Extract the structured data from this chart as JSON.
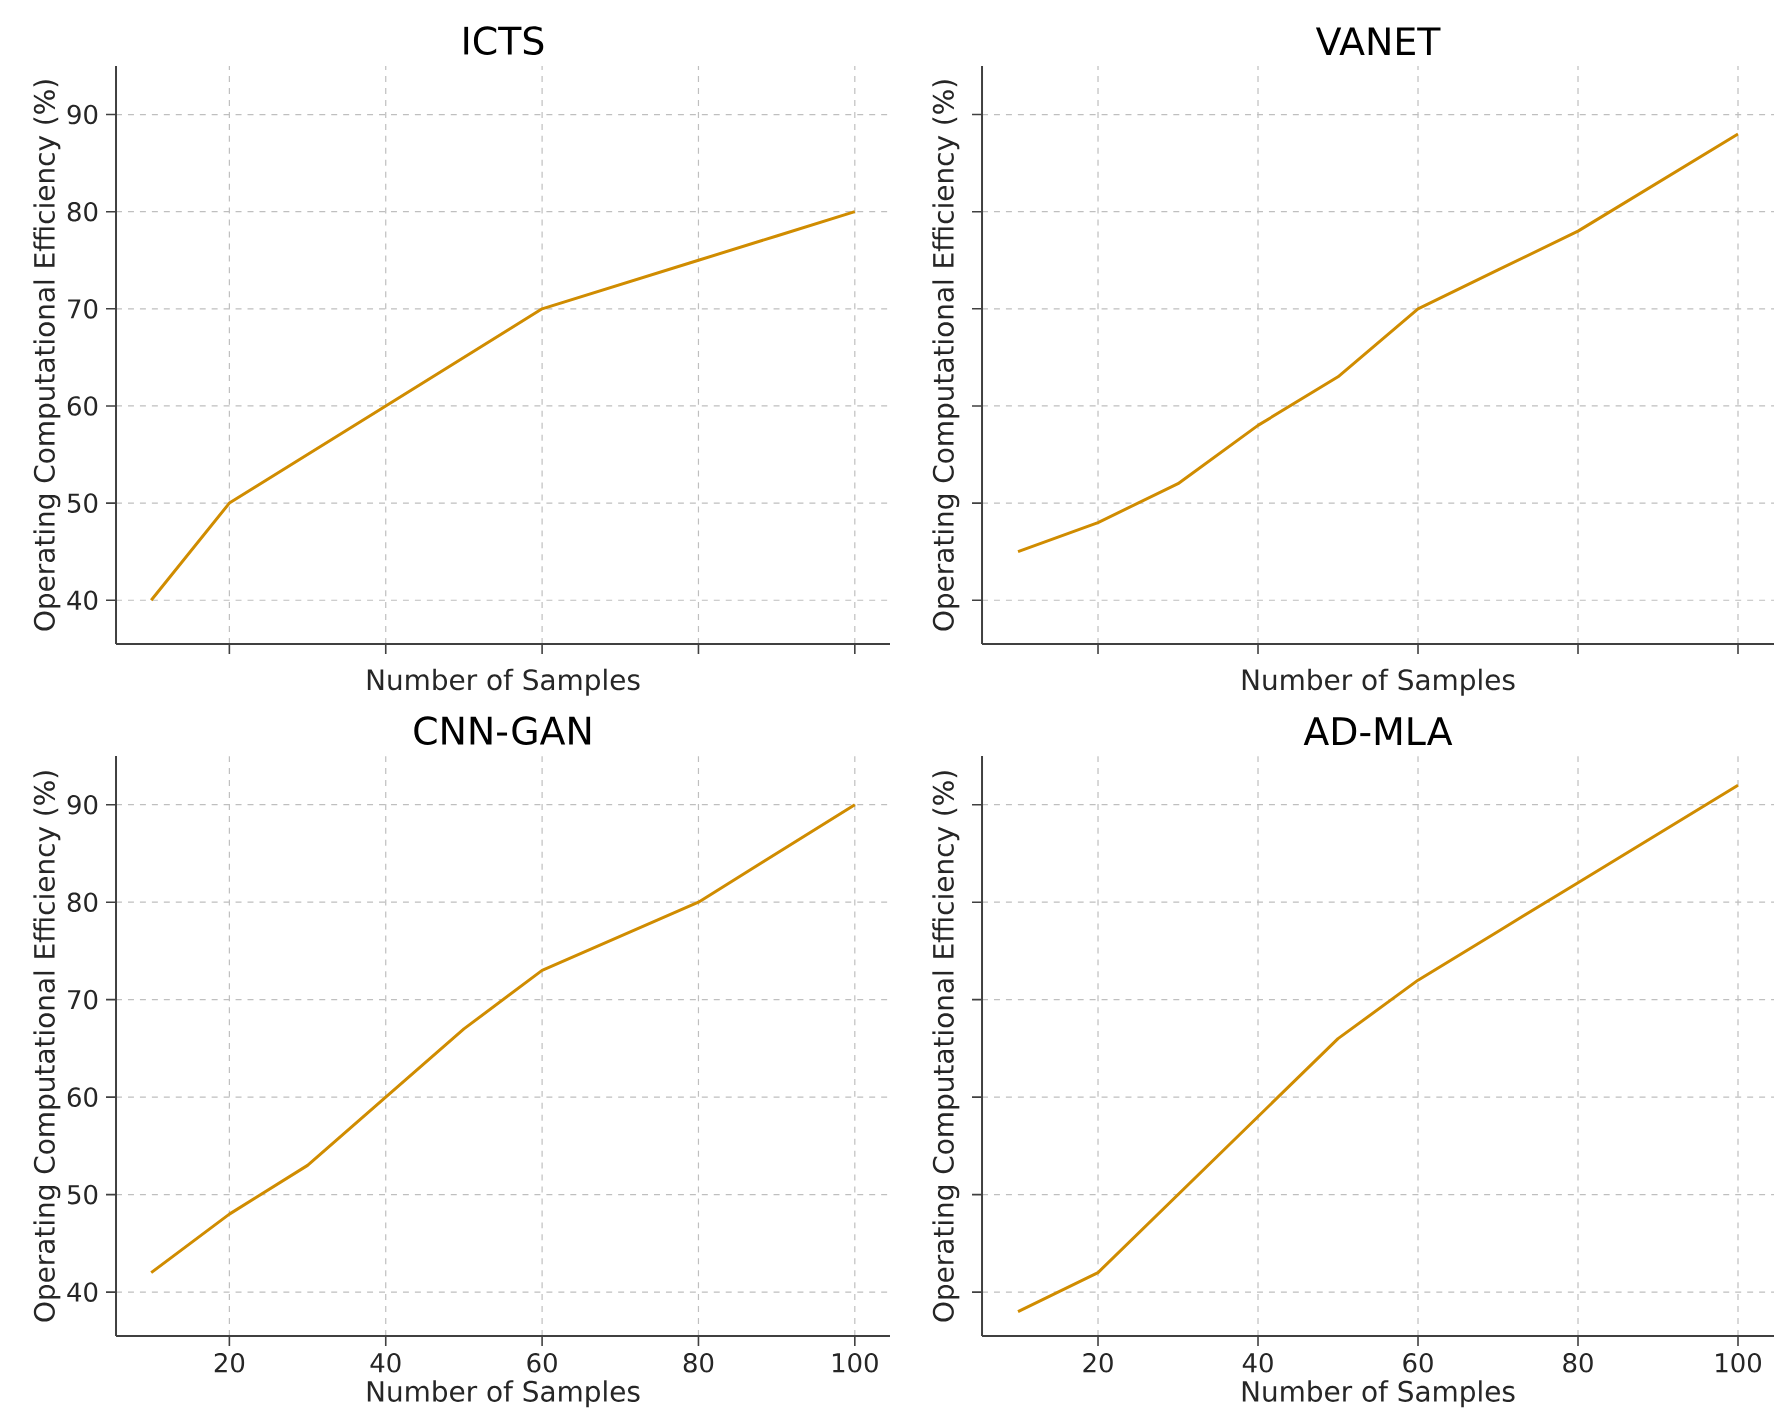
{
  "chart_data": [
    {
      "type": "line",
      "title": "ICTS",
      "xlabel": "Number of Samples",
      "ylabel": "Operating Computational Efficiency (%)",
      "x": [
        10,
        20,
        30,
        40,
        50,
        60,
        70,
        80,
        90,
        100
      ],
      "series": [
        {
          "color": "#d08c00",
          "values": [
            40,
            50,
            55,
            60,
            65,
            70,
            72.5,
            75,
            77.5,
            80
          ]
        }
      ],
      "xlim": [
        5.5,
        104.5
      ],
      "ylim": [
        35.5,
        95
      ],
      "xticks": [
        20,
        40,
        60,
        80,
        100
      ],
      "yticks": [
        40,
        50,
        60,
        70,
        80,
        90
      ],
      "grid": true,
      "tick_labels": "y"
    },
    {
      "type": "line",
      "title": "VANET",
      "xlabel": "Number of Samples",
      "ylabel": "Operating Computational Efficiency (%)",
      "x": [
        10,
        20,
        30,
        40,
        50,
        60,
        70,
        80,
        90,
        100
      ],
      "series": [
        {
          "color": "#d08c00",
          "values": [
            45,
            48,
            52,
            58,
            63,
            70,
            74,
            78,
            83,
            88
          ]
        }
      ],
      "xlim": [
        5.5,
        104.5
      ],
      "ylim": [
        35.5,
        95
      ],
      "xticks": [
        20,
        40,
        60,
        80,
        100
      ],
      "yticks": [
        40,
        50,
        60,
        70,
        80,
        90
      ],
      "grid": true,
      "tick_labels": false
    },
    {
      "type": "line",
      "title": "CNN-GAN",
      "xlabel": "Number of Samples",
      "ylabel": "Operating Computational Efficiency (%)",
      "x": [
        10,
        20,
        30,
        40,
        50,
        60,
        70,
        80,
        90,
        100
      ],
      "series": [
        {
          "color": "#d08c00",
          "values": [
            42,
            48,
            53,
            60,
            67,
            73,
            76.5,
            80,
            85,
            90
          ]
        }
      ],
      "xlim": [
        5.5,
        104.5
      ],
      "ylim": [
        35.5,
        95
      ],
      "xticks": [
        20,
        40,
        60,
        80,
        100
      ],
      "yticks": [
        40,
        50,
        60,
        70,
        80,
        90
      ],
      "grid": true
    },
    {
      "type": "line",
      "title": "AD-MLA",
      "xlabel": "Number of Samples",
      "ylabel": "Operating Computational Efficiency (%)",
      "x": [
        10,
        20,
        30,
        40,
        50,
        60,
        70,
        80,
        90,
        100
      ],
      "series": [
        {
          "color": "#d08c00",
          "values": [
            38,
            42,
            50,
            58,
            66,
            72,
            77,
            82,
            87,
            92
          ]
        }
      ],
      "xlim": [
        5.5,
        104.5
      ],
      "ylim": [
        35.5,
        95
      ],
      "xticks": [
        20,
        40,
        60,
        80,
        100
      ],
      "yticks": [
        40,
        50,
        60,
        70,
        80,
        90
      ],
      "grid": true,
      "tick_labels": "x"
    }
  ]
}
